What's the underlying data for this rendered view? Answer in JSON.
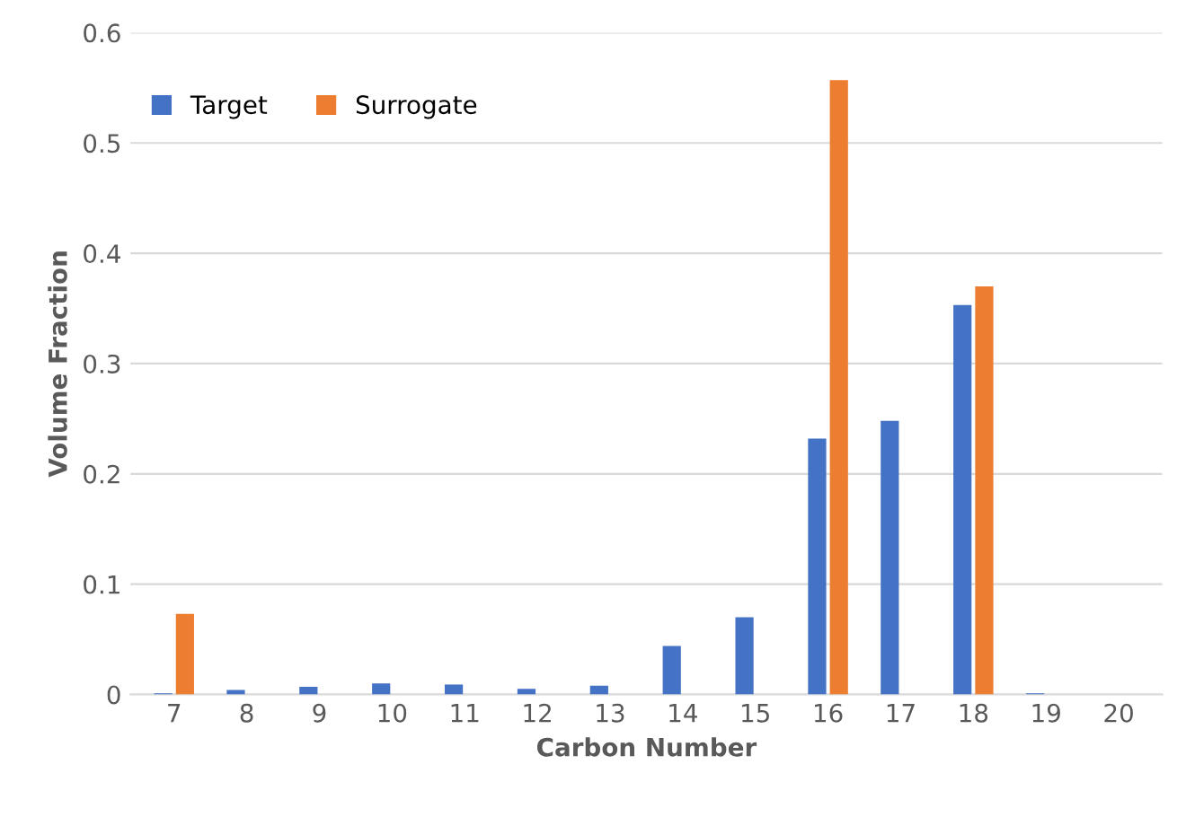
{
  "chart_data": {
    "type": "bar",
    "xlabel": "Carbon Number",
    "ylabel": "Volume Fraction",
    "categories": [
      "7",
      "8",
      "9",
      "10",
      "11",
      "12",
      "13",
      "14",
      "15",
      "16",
      "17",
      "18",
      "19",
      "20"
    ],
    "series": [
      {
        "name": "Target",
        "color": "#4472c4",
        "values": [
          0.001,
          0.004,
          0.007,
          0.01,
          0.009,
          0.005,
          0.008,
          0.044,
          0.07,
          0.232,
          0.248,
          0.353,
          0.001,
          0
        ]
      },
      {
        "name": "Surrogate",
        "color": "#ed7d31",
        "values": [
          0.073,
          0,
          0,
          0,
          0,
          0,
          0,
          0,
          0,
          0.557,
          0,
          0.37,
          0,
          0
        ]
      }
    ],
    "ylim": [
      0,
      0.6
    ],
    "yticks": [
      {
        "value": 0,
        "label": "0"
      },
      0.1,
      0.2,
      0.3,
      0.4,
      0.5,
      0.6
    ],
    "grid": "y",
    "legend": "top left"
  }
}
